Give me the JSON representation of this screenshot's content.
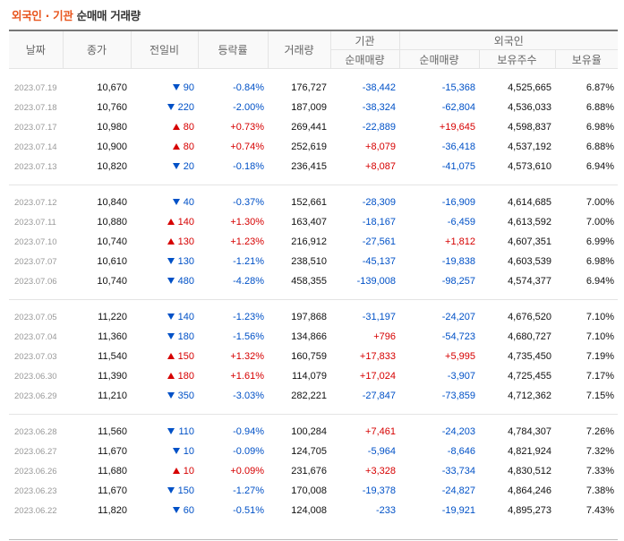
{
  "header": {
    "title_orange": "외국인 · 기관",
    "title_rest": " 순매매 거래량"
  },
  "columns": {
    "date": "날짜",
    "close": "종가",
    "change": "전일비",
    "rate": "등락률",
    "volume": "거래량",
    "inst_group": "기관",
    "inst_net": "순매매량",
    "foreign_group": "외국인",
    "foreign_net": "순매매량",
    "foreign_holdings": "보유주수",
    "foreign_ratio": "보유율"
  },
  "groups": [
    {
      "rows": [
        {
          "date": "2023.07.19",
          "close": "10,670",
          "dir": "down",
          "change": "90",
          "rate": "-0.84%",
          "volume": "176,727",
          "inst_net": "-38,442",
          "foreign_net": "-15,368",
          "holdings": "4,525,665",
          "ratio": "6.87%"
        },
        {
          "date": "2023.07.18",
          "close": "10,760",
          "dir": "down",
          "change": "220",
          "rate": "-2.00%",
          "volume": "187,009",
          "inst_net": "-38,324",
          "foreign_net": "-62,804",
          "holdings": "4,536,033",
          "ratio": "6.88%"
        },
        {
          "date": "2023.07.17",
          "close": "10,980",
          "dir": "up",
          "change": "80",
          "rate": "+0.73%",
          "volume": "269,441",
          "inst_net": "-22,889",
          "foreign_net": "+19,645",
          "holdings": "4,598,837",
          "ratio": "6.98%"
        },
        {
          "date": "2023.07.14",
          "close": "10,900",
          "dir": "up",
          "change": "80",
          "rate": "+0.74%",
          "volume": "252,619",
          "inst_net": "+8,079",
          "foreign_net": "-36,418",
          "holdings": "4,537,192",
          "ratio": "6.88%"
        },
        {
          "date": "2023.07.13",
          "close": "10,820",
          "dir": "down",
          "change": "20",
          "rate": "-0.18%",
          "volume": "236,415",
          "inst_net": "+8,087",
          "foreign_net": "-41,075",
          "holdings": "4,573,610",
          "ratio": "6.94%"
        }
      ]
    },
    {
      "rows": [
        {
          "date": "2023.07.12",
          "close": "10,840",
          "dir": "down",
          "change": "40",
          "rate": "-0.37%",
          "volume": "152,661",
          "inst_net": "-28,309",
          "foreign_net": "-16,909",
          "holdings": "4,614,685",
          "ratio": "7.00%"
        },
        {
          "date": "2023.07.11",
          "close": "10,880",
          "dir": "up",
          "change": "140",
          "rate": "+1.30%",
          "volume": "163,407",
          "inst_net": "-18,167",
          "foreign_net": "-6,459",
          "holdings": "4,613,592",
          "ratio": "7.00%"
        },
        {
          "date": "2023.07.10",
          "close": "10,740",
          "dir": "up",
          "change": "130",
          "rate": "+1.23%",
          "volume": "216,912",
          "inst_net": "-27,561",
          "foreign_net": "+1,812",
          "holdings": "4,607,351",
          "ratio": "6.99%"
        },
        {
          "date": "2023.07.07",
          "close": "10,610",
          "dir": "down",
          "change": "130",
          "rate": "-1.21%",
          "volume": "238,510",
          "inst_net": "-45,137",
          "foreign_net": "-19,838",
          "holdings": "4,603,539",
          "ratio": "6.98%"
        },
        {
          "date": "2023.07.06",
          "close": "10,740",
          "dir": "down",
          "change": "480",
          "rate": "-4.28%",
          "volume": "458,355",
          "inst_net": "-139,008",
          "foreign_net": "-98,257",
          "holdings": "4,574,377",
          "ratio": "6.94%"
        }
      ]
    },
    {
      "rows": [
        {
          "date": "2023.07.05",
          "close": "11,220",
          "dir": "down",
          "change": "140",
          "rate": "-1.23%",
          "volume": "197,868",
          "inst_net": "-31,197",
          "foreign_net": "-24,207",
          "holdings": "4,676,520",
          "ratio": "7.10%"
        },
        {
          "date": "2023.07.04",
          "close": "11,360",
          "dir": "down",
          "change": "180",
          "rate": "-1.56%",
          "volume": "134,866",
          "inst_net": "+796",
          "foreign_net": "-54,723",
          "holdings": "4,680,727",
          "ratio": "7.10%"
        },
        {
          "date": "2023.07.03",
          "close": "11,540",
          "dir": "up",
          "change": "150",
          "rate": "+1.32%",
          "volume": "160,759",
          "inst_net": "+17,833",
          "foreign_net": "+5,995",
          "holdings": "4,735,450",
          "ratio": "7.19%"
        },
        {
          "date": "2023.06.30",
          "close": "11,390",
          "dir": "up",
          "change": "180",
          "rate": "+1.61%",
          "volume": "114,079",
          "inst_net": "+17,024",
          "foreign_net": "-3,907",
          "holdings": "4,725,455",
          "ratio": "7.17%"
        },
        {
          "date": "2023.06.29",
          "close": "11,210",
          "dir": "down",
          "change": "350",
          "rate": "-3.03%",
          "volume": "282,221",
          "inst_net": "-27,847",
          "foreign_net": "-73,859",
          "holdings": "4,712,362",
          "ratio": "7.15%"
        }
      ]
    },
    {
      "rows": [
        {
          "date": "2023.06.28",
          "close": "11,560",
          "dir": "down",
          "change": "110",
          "rate": "-0.94%",
          "volume": "100,284",
          "inst_net": "+7,461",
          "foreign_net": "-24,203",
          "holdings": "4,784,307",
          "ratio": "7.26%"
        },
        {
          "date": "2023.06.27",
          "close": "11,670",
          "dir": "down",
          "change": "10",
          "rate": "-0.09%",
          "volume": "124,705",
          "inst_net": "-5,964",
          "foreign_net": "-8,646",
          "holdings": "4,821,924",
          "ratio": "7.32%"
        },
        {
          "date": "2023.06.26",
          "close": "11,680",
          "dir": "up",
          "change": "10",
          "rate": "+0.09%",
          "volume": "231,676",
          "inst_net": "+3,328",
          "foreign_net": "-33,734",
          "holdings": "4,830,512",
          "ratio": "7.33%"
        },
        {
          "date": "2023.06.23",
          "close": "11,670",
          "dir": "down",
          "change": "150",
          "rate": "-1.27%",
          "volume": "170,008",
          "inst_net": "-19,378",
          "foreign_net": "-24,827",
          "holdings": "4,864,246",
          "ratio": "7.38%"
        },
        {
          "date": "2023.06.22",
          "close": "11,820",
          "dir": "down",
          "change": "60",
          "rate": "-0.51%",
          "volume": "124,008",
          "inst_net": "-233",
          "foreign_net": "-19,921",
          "holdings": "4,895,273",
          "ratio": "7.43%"
        }
      ]
    }
  ],
  "colors": {
    "up": "#d60000",
    "down": "#0051c7",
    "title_accent": "#e8551d"
  }
}
